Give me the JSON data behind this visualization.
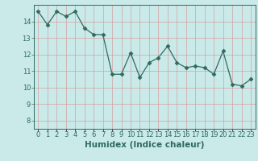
{
  "x": [
    0,
    1,
    2,
    3,
    4,
    5,
    6,
    7,
    8,
    9,
    10,
    11,
    12,
    13,
    14,
    15,
    16,
    17,
    18,
    19,
    20,
    21,
    22,
    23
  ],
  "y": [
    14.6,
    13.8,
    14.6,
    14.3,
    14.6,
    13.6,
    13.2,
    13.2,
    10.8,
    10.8,
    12.1,
    10.6,
    11.5,
    11.8,
    12.5,
    11.5,
    11.2,
    11.3,
    11.2,
    10.8,
    12.2,
    10.2,
    10.1,
    10.5
  ],
  "xlabel": "Humidex (Indice chaleur)",
  "ylim": [
    7.5,
    15.0
  ],
  "xlim": [
    -0.5,
    23.5
  ],
  "yticks": [
    8,
    9,
    10,
    11,
    12,
    13,
    14
  ],
  "line_color": "#2e6b5e",
  "marker": "D",
  "marker_size": 2.5,
  "bg_color": "#caeaea",
  "grid_color": "#d4a0a0",
  "axis_color": "#2e6b5e",
  "tick_color": "#2e6b5e",
  "label_color": "#2e6b5e",
  "xlabel_fontsize": 7.5,
  "tick_fontsize": 6.0
}
